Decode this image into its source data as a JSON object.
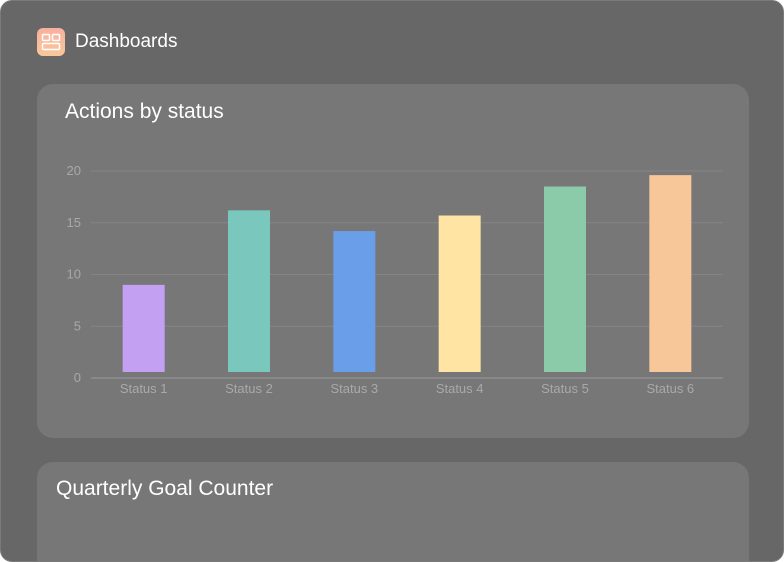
{
  "app": {
    "title": "Dashboards",
    "logo_icon": "dashboard-grid-icon"
  },
  "chart_card": {
    "title": "Actions by status"
  },
  "goal_card": {
    "title": "Quarterly Goal Counter"
  },
  "chart_data": {
    "type": "bar",
    "title": "Actions by status",
    "xlabel": "",
    "ylabel": "",
    "categories": [
      "Status 1",
      "Status 2",
      "Status 3",
      "Status 4",
      "Status 5",
      "Status 6"
    ],
    "values": [
      9,
      16.2,
      14.2,
      15.7,
      18.5,
      19.6
    ],
    "colors": [
      "#c4a0f2",
      "#7ac8bd",
      "#6a9ee8",
      "#ffe4a3",
      "#8bcbaa",
      "#f7c79a"
    ],
    "ylim": [
      0,
      20
    ],
    "yticks": [
      0,
      5,
      10,
      15,
      20
    ],
    "grid": true,
    "legend": "none"
  }
}
